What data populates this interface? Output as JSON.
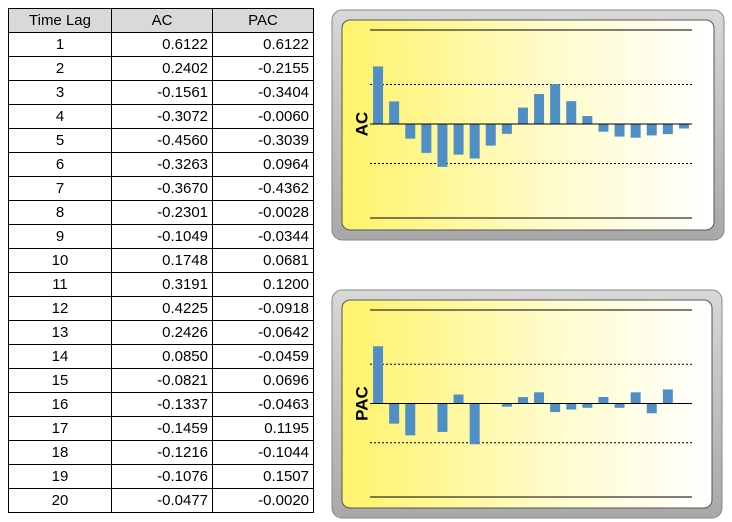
{
  "table": {
    "columns": [
      "Time Lag",
      "AC",
      "PAC"
    ],
    "rows": [
      [
        "1",
        "0.6122",
        "0.6122"
      ],
      [
        "2",
        "0.2402",
        "-0.2155"
      ],
      [
        "3",
        "-0.1561",
        "-0.3404"
      ],
      [
        "4",
        "-0.3072",
        "-0.0060"
      ],
      [
        "5",
        "-0.4560",
        "-0.3039"
      ],
      [
        "6",
        "-0.3263",
        "0.0964"
      ],
      [
        "7",
        "-0.3670",
        "-0.4362"
      ],
      [
        "8",
        "-0.2301",
        "-0.0028"
      ],
      [
        "9",
        "-0.1049",
        "-0.0344"
      ],
      [
        "10",
        "0.1748",
        "0.0681"
      ],
      [
        "11",
        "0.3191",
        "0.1200"
      ],
      [
        "12",
        "0.4225",
        "-0.0918"
      ],
      [
        "13",
        "0.2426",
        "-0.0642"
      ],
      [
        "14",
        "0.0850",
        "-0.0459"
      ],
      [
        "15",
        "-0.0821",
        "0.0696"
      ],
      [
        "16",
        "-0.1337",
        "-0.0463"
      ],
      [
        "17",
        "-0.1459",
        "0.1195"
      ],
      [
        "18",
        "-0.1216",
        "-0.1044"
      ],
      [
        "19",
        "-0.1076",
        "0.1507"
      ],
      [
        "20",
        "-0.0477",
        "-0.0020"
      ]
    ]
  },
  "chart_data": [
    {
      "type": "bar",
      "ylabel": "AC",
      "color": "#4f8fc6",
      "ylim": [
        -1,
        1
      ],
      "values": [
        0.6122,
        0.2402,
        -0.1561,
        -0.3072,
        -0.456,
        -0.3263,
        -0.367,
        -0.2301,
        -0.1049,
        0.1748,
        0.3191,
        0.4225,
        0.2426,
        0.085,
        -0.0821,
        -0.1337,
        -0.1459,
        -0.1216,
        -0.1076,
        -0.0477
      ],
      "solid_lines": [
        -1,
        0,
        1
      ],
      "dashed_lines": [
        -0.42,
        0.42
      ]
    },
    {
      "type": "bar",
      "ylabel": "PAC",
      "color": "#4f8fc6",
      "ylim": [
        -1,
        1
      ],
      "values": [
        0.6122,
        -0.2155,
        -0.3404,
        -0.006,
        -0.3039,
        0.0964,
        -0.4362,
        -0.0028,
        -0.0344,
        0.0681,
        0.12,
        -0.0918,
        -0.0642,
        -0.0459,
        0.0696,
        -0.0463,
        0.1195,
        -0.1044,
        0.1507,
        -0.002
      ],
      "solid_lines": [
        -1,
        0,
        1
      ],
      "dashed_lines": [
        -0.42,
        0.42
      ]
    }
  ]
}
